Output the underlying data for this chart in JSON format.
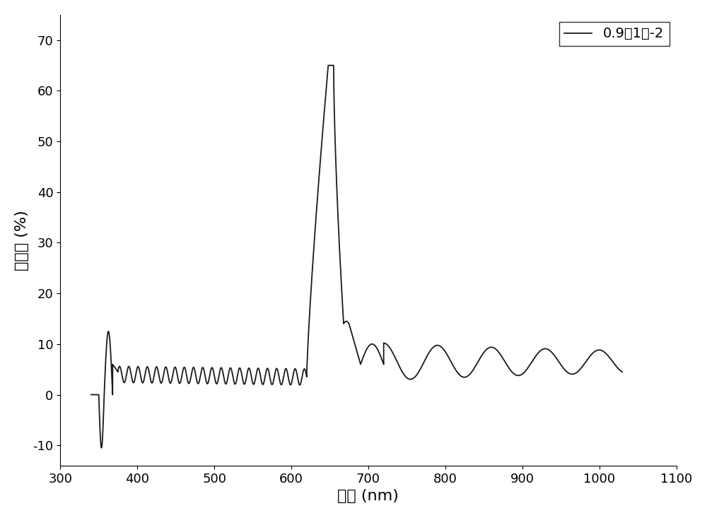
{
  "xlabel": "波长 (nm)",
  "ylabel": "反射率 (%)",
  "legend_label": "0.9（1）-2",
  "line_color": "#1a1a1a",
  "xlim": [
    300,
    1100
  ],
  "ylim": [
    -14,
    75
  ],
  "yticks": [
    -10,
    0,
    10,
    20,
    30,
    40,
    50,
    60,
    70
  ],
  "xticks": [
    300,
    400,
    500,
    600,
    700,
    800,
    900,
    1000,
    1100
  ],
  "background_color": "#ffffff",
  "line_width": 1.3
}
